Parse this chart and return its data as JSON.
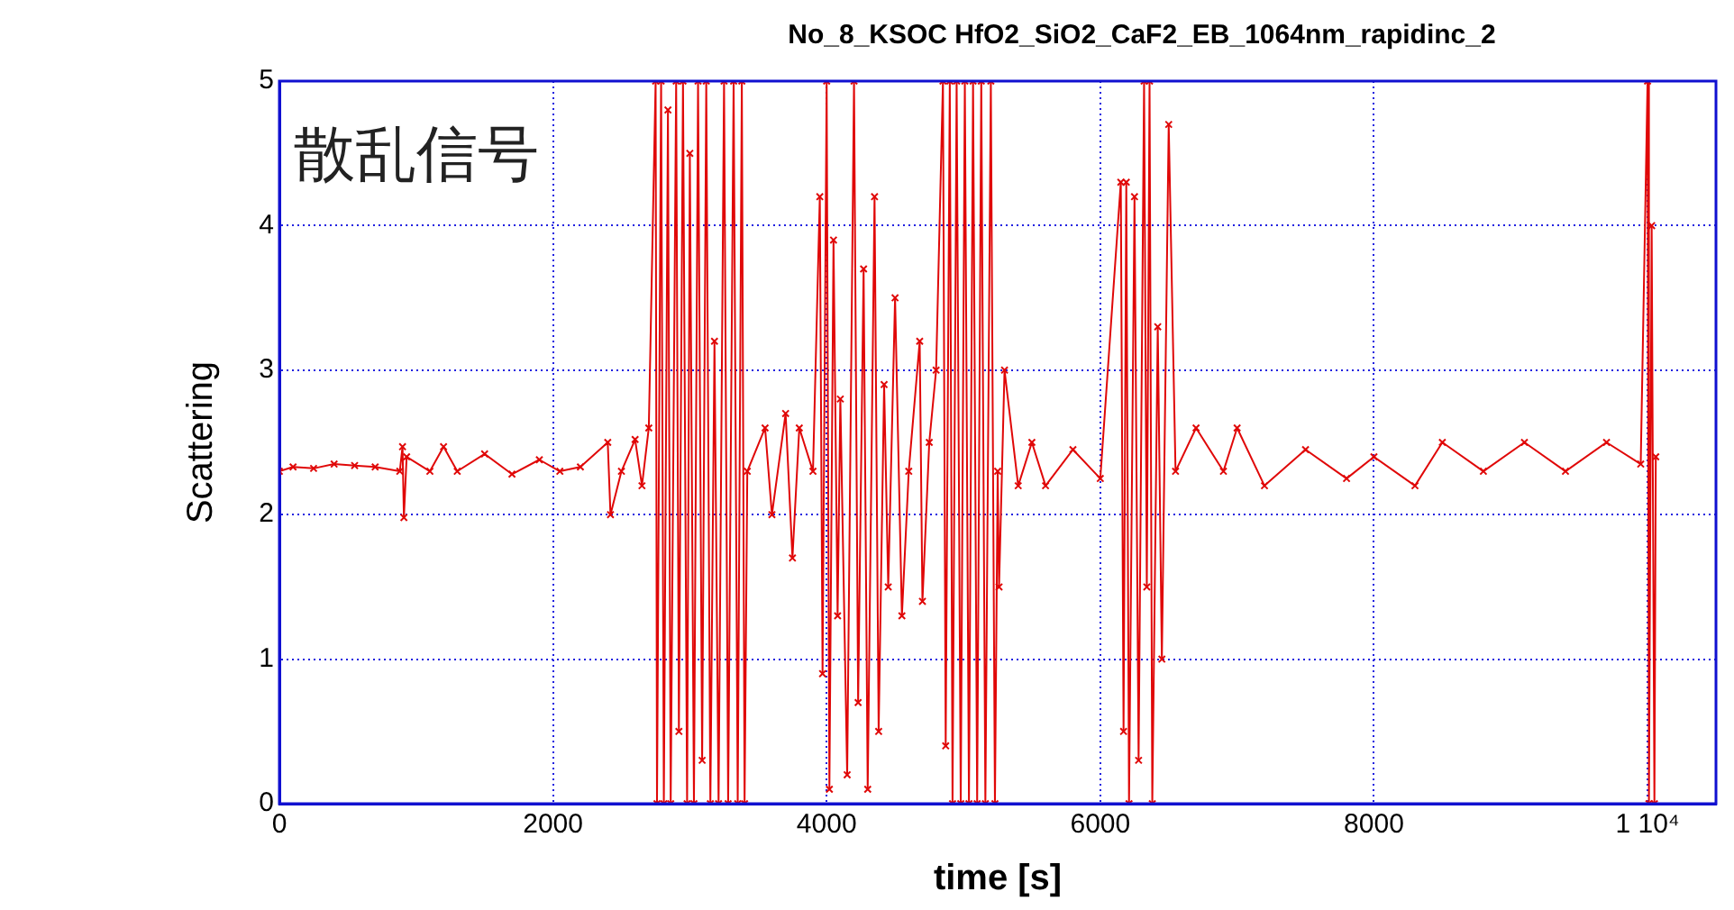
{
  "chart_data": {
    "type": "line",
    "title": "No_8_KSOC HfO2_SiO2_CaF2_EB_1064nm_rapidinc_2",
    "xlabel": "time [s]",
    "ylabel": "Scattering",
    "annotations": [
      "散乱信号"
    ],
    "x": [
      0,
      100,
      250,
      400,
      550,
      700,
      880,
      900,
      910,
      930,
      1100,
      1200,
      1300,
      1500,
      1700,
      1900,
      2050,
      2200,
      2400,
      2420,
      2500,
      2600,
      2650,
      2700,
      2750,
      2760,
      2790,
      2810,
      2840,
      2860,
      2900,
      2920,
      2950,
      2980,
      3000,
      3030,
      3060,
      3090,
      3120,
      3150,
      3180,
      3210,
      3250,
      3280,
      3320,
      3350,
      3380,
      3400,
      3420,
      3550,
      3600,
      3700,
      3750,
      3800,
      3900,
      3950,
      3970,
      4000,
      4020,
      4050,
      4080,
      4100,
      4150,
      4200,
      4230,
      4270,
      4300,
      4350,
      4380,
      4420,
      4450,
      4500,
      4550,
      4600,
      4680,
      4700,
      4750,
      4800,
      4850,
      4870,
      4900,
      4920,
      4950,
      4980,
      5010,
      5040,
      5070,
      5100,
      5130,
      5160,
      5200,
      5230,
      5250,
      5260,
      5300,
      5400,
      5500,
      5600,
      5800,
      6000,
      6150,
      6170,
      6190,
      6210,
      6250,
      6280,
      6320,
      6340,
      6360,
      6380,
      6420,
      6450,
      6500,
      6550,
      6700,
      6900,
      7000,
      7200,
      7500,
      7800,
      8000,
      8300,
      8500,
      8800,
      9100,
      9400,
      9700,
      9950,
      10000,
      10010,
      10030,
      10050,
      10060
    ],
    "series": [
      {
        "color": "#e00808",
        "values": [
          2.3,
          2.33,
          2.32,
          2.35,
          2.34,
          2.33,
          2.3,
          2.47,
          1.98,
          2.4,
          2.3,
          2.47,
          2.3,
          2.42,
          2.28,
          2.38,
          2.3,
          2.33,
          2.5,
          2.0,
          2.3,
          2.52,
          2.2,
          2.6,
          5,
          0,
          5,
          0,
          4.8,
          0,
          5,
          0.5,
          5,
          0,
          4.5,
          0,
          5,
          0.3,
          5,
          0,
          3.2,
          0,
          5,
          0,
          5,
          0,
          5,
          0,
          2.3,
          2.6,
          2.0,
          2.7,
          1.7,
          2.6,
          2.3,
          4.2,
          0.9,
          5,
          0.1,
          3.9,
          1.3,
          2.8,
          0.2,
          5,
          0.7,
          3.7,
          0.1,
          4.2,
          0.5,
          2.9,
          1.5,
          3.5,
          1.3,
          2.3,
          3.2,
          1.4,
          2.5,
          3.0,
          5,
          0.4,
          5,
          0,
          5,
          0,
          5,
          0,
          5,
          0,
          5,
          0,
          5,
          0,
          2.3,
          1.5,
          3.0,
          2.2,
          2.5,
          2.2,
          2.45,
          2.25,
          4.3,
          0.5,
          4.3,
          0,
          4.2,
          0.3,
          5,
          1.5,
          5,
          0,
          3.3,
          1.0,
          4.7,
          2.3,
          2.6,
          2.3,
          2.6,
          2.2,
          2.45,
          2.25,
          2.4,
          2.2,
          2.5,
          2.3,
          2.5,
          2.3,
          2.5,
          2.35,
          5,
          0,
          4,
          0,
          2.4
        ]
      }
    ],
    "xlim": [
      0,
      10500
    ],
    "xticks": [
      0,
      2000,
      4000,
      6000,
      8000,
      {
        "value": 10000,
        "label": "1 10⁴"
      }
    ],
    "ylim": [
      0,
      5
    ],
    "yticks": [
      0,
      1,
      2,
      3,
      4,
      5
    ],
    "grid": true,
    "legend": false,
    "marker": "cross",
    "line_style": "solid"
  }
}
